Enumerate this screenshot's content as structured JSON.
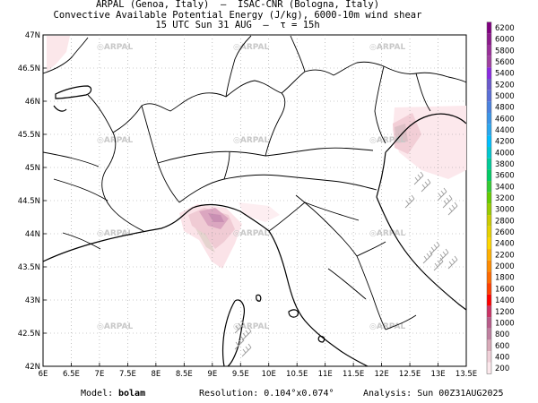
{
  "header": {
    "line1": "ARPAL (Genoa, Italy)  —  ISAC-CNR (Bologna, Italy)",
    "line2": "Convective Available Potential Energy (J/kg), 6000-10m wind shear",
    "line3": "15 UTC Sun 31 AUG  —  τ = 15h"
  },
  "map": {
    "lat_labels": [
      "47N",
      "46.5N",
      "46N",
      "45.5N",
      "45N",
      "44.5N",
      "44N",
      "43.5N",
      "43N",
      "42.5N",
      "42N"
    ],
    "lon_labels": [
      "6E",
      "6.5E",
      "7E",
      "7.5E",
      "8E",
      "8.5E",
      "9E",
      "9.5E",
      "10E",
      "10.5E",
      "11E",
      "11.5E",
      "12E",
      "12.5E",
      "13E",
      "13.5E"
    ],
    "watermark": "ARPAL",
    "grid": true
  },
  "colorbar": {
    "levels": [
      "6200",
      "6000",
      "5800",
      "5600",
      "5400",
      "5200",
      "5000",
      "4800",
      "4600",
      "4400",
      "4200",
      "4000",
      "3800",
      "3600",
      "3400",
      "3200",
      "3000",
      "2800",
      "2600",
      "2400",
      "2200",
      "2000",
      "1800",
      "1600",
      "1400",
      "1200",
      "1000",
      "800",
      "600",
      "400",
      "200"
    ],
    "colors": [
      "#800080",
      "#8c1a8c",
      "#9a2f9a",
      "#a040a0",
      "#8a2be2",
      "#6a5acd",
      "#5a6fd8",
      "#4a82e0",
      "#3a95e8",
      "#2aa8f0",
      "#00bfff",
      "#00c8d0",
      "#00cc99",
      "#00cc66",
      "#33cc33",
      "#66cc00",
      "#99cc00",
      "#cccc00",
      "#e6d200",
      "#ffd700",
      "#ffb000",
      "#ff8c00",
      "#ff6a00",
      "#ff4000",
      "#ff0000",
      "#cc3366",
      "#b85c8a",
      "#c080a0",
      "#d8aab8",
      "#f0d0d8",
      "#fce8ec"
    ]
  },
  "footer": {
    "model_label": "Model:",
    "model_value": "bolam",
    "resolution": "Resolution: 0.104°x0.074°",
    "analysis": "Analysis: Sun 00Z31AUG2025"
  }
}
